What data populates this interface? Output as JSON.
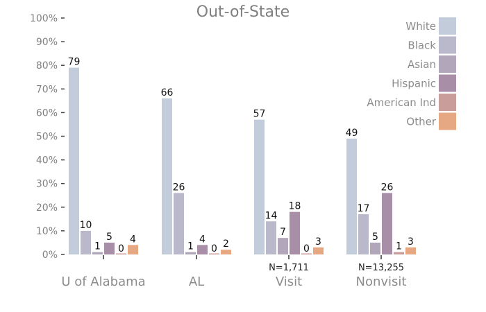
{
  "chart_data": {
    "type": "bar",
    "title": "Out-of-State",
    "xlabel": "",
    "ylabel": "",
    "ylim": [
      0,
      100
    ],
    "yticks": [
      "0%",
      "10%",
      "20%",
      "30%",
      "40%",
      "50%",
      "60%",
      "70%",
      "80%",
      "90%",
      "100%"
    ],
    "categories": [
      "U of Alabama",
      "AL",
      "Visit",
      "Nonvisit"
    ],
    "category_notes": [
      "",
      "",
      "N=1,711",
      "N=13,255"
    ],
    "legend_position": "top-right",
    "grid": false,
    "series": [
      {
        "name": "White",
        "color": "#c2ccdb",
        "values": [
          79,
          66,
          57,
          49
        ]
      },
      {
        "name": "Black",
        "color": "#bab8cb",
        "values": [
          10,
          26,
          14,
          17
        ]
      },
      {
        "name": "Asian",
        "color": "#b2a6ba",
        "values": [
          1,
          1,
          7,
          5
        ]
      },
      {
        "name": "Hispanic",
        "color": "#a88ea6",
        "values": [
          5,
          4,
          18,
          26
        ]
      },
      {
        "name": "American Ind",
        "color": "#c99d99",
        "values": [
          0,
          0,
          0,
          1
        ]
      },
      {
        "name": "Other",
        "color": "#e6a882",
        "values": [
          4,
          2,
          3,
          3
        ]
      }
    ]
  }
}
